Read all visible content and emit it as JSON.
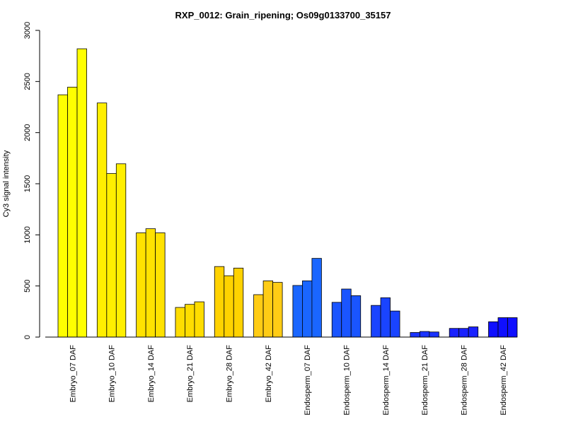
{
  "chart_data": {
    "type": "bar",
    "title": "RXP_0012: Grain_ripening; Os09g0133700_35157",
    "xlabel": "",
    "ylabel": "Cy3 signal intensity",
    "ylim": [
      0,
      3000
    ],
    "yticks": [
      0,
      500,
      1000,
      1500,
      2000,
      2500,
      3000
    ],
    "grid": false,
    "legend": "none",
    "categories": [
      "Embryo_07 DAF",
      "Embryo_10 DAF",
      "Embryo_14 DAF",
      "Embryo_21 DAF",
      "Embryo_28 DAF",
      "Embryo_42 DAF",
      "Endosperm_07 DAF",
      "Endosperm_10 DAF",
      "Endosperm_14 DAF",
      "Endosperm_21 DAF",
      "Endosperm_28 DAF",
      "Endosperm_42 DAF"
    ],
    "replicates": [
      [
        2370,
        2445,
        2820
      ],
      [
        2290,
        1600,
        1695
      ],
      [
        1020,
        1060,
        1020
      ],
      [
        290,
        320,
        345
      ],
      [
        690,
        600,
        675
      ],
      [
        415,
        550,
        535
      ],
      [
        505,
        550,
        770
      ],
      [
        340,
        470,
        405
      ],
      [
        310,
        385,
        255
      ],
      [
        45,
        55,
        50
      ],
      [
        85,
        85,
        100
      ],
      [
        150,
        190,
        190
      ]
    ],
    "colors": [
      "#ffff00",
      "#ffef00",
      "#ffe200",
      "#ffdd00",
      "#ffd200",
      "#ffcc15",
      "#1a66ff",
      "#1a55ff",
      "#1a44ff",
      "#1a33ff",
      "#1a22ff",
      "#0f0fff"
    ]
  }
}
